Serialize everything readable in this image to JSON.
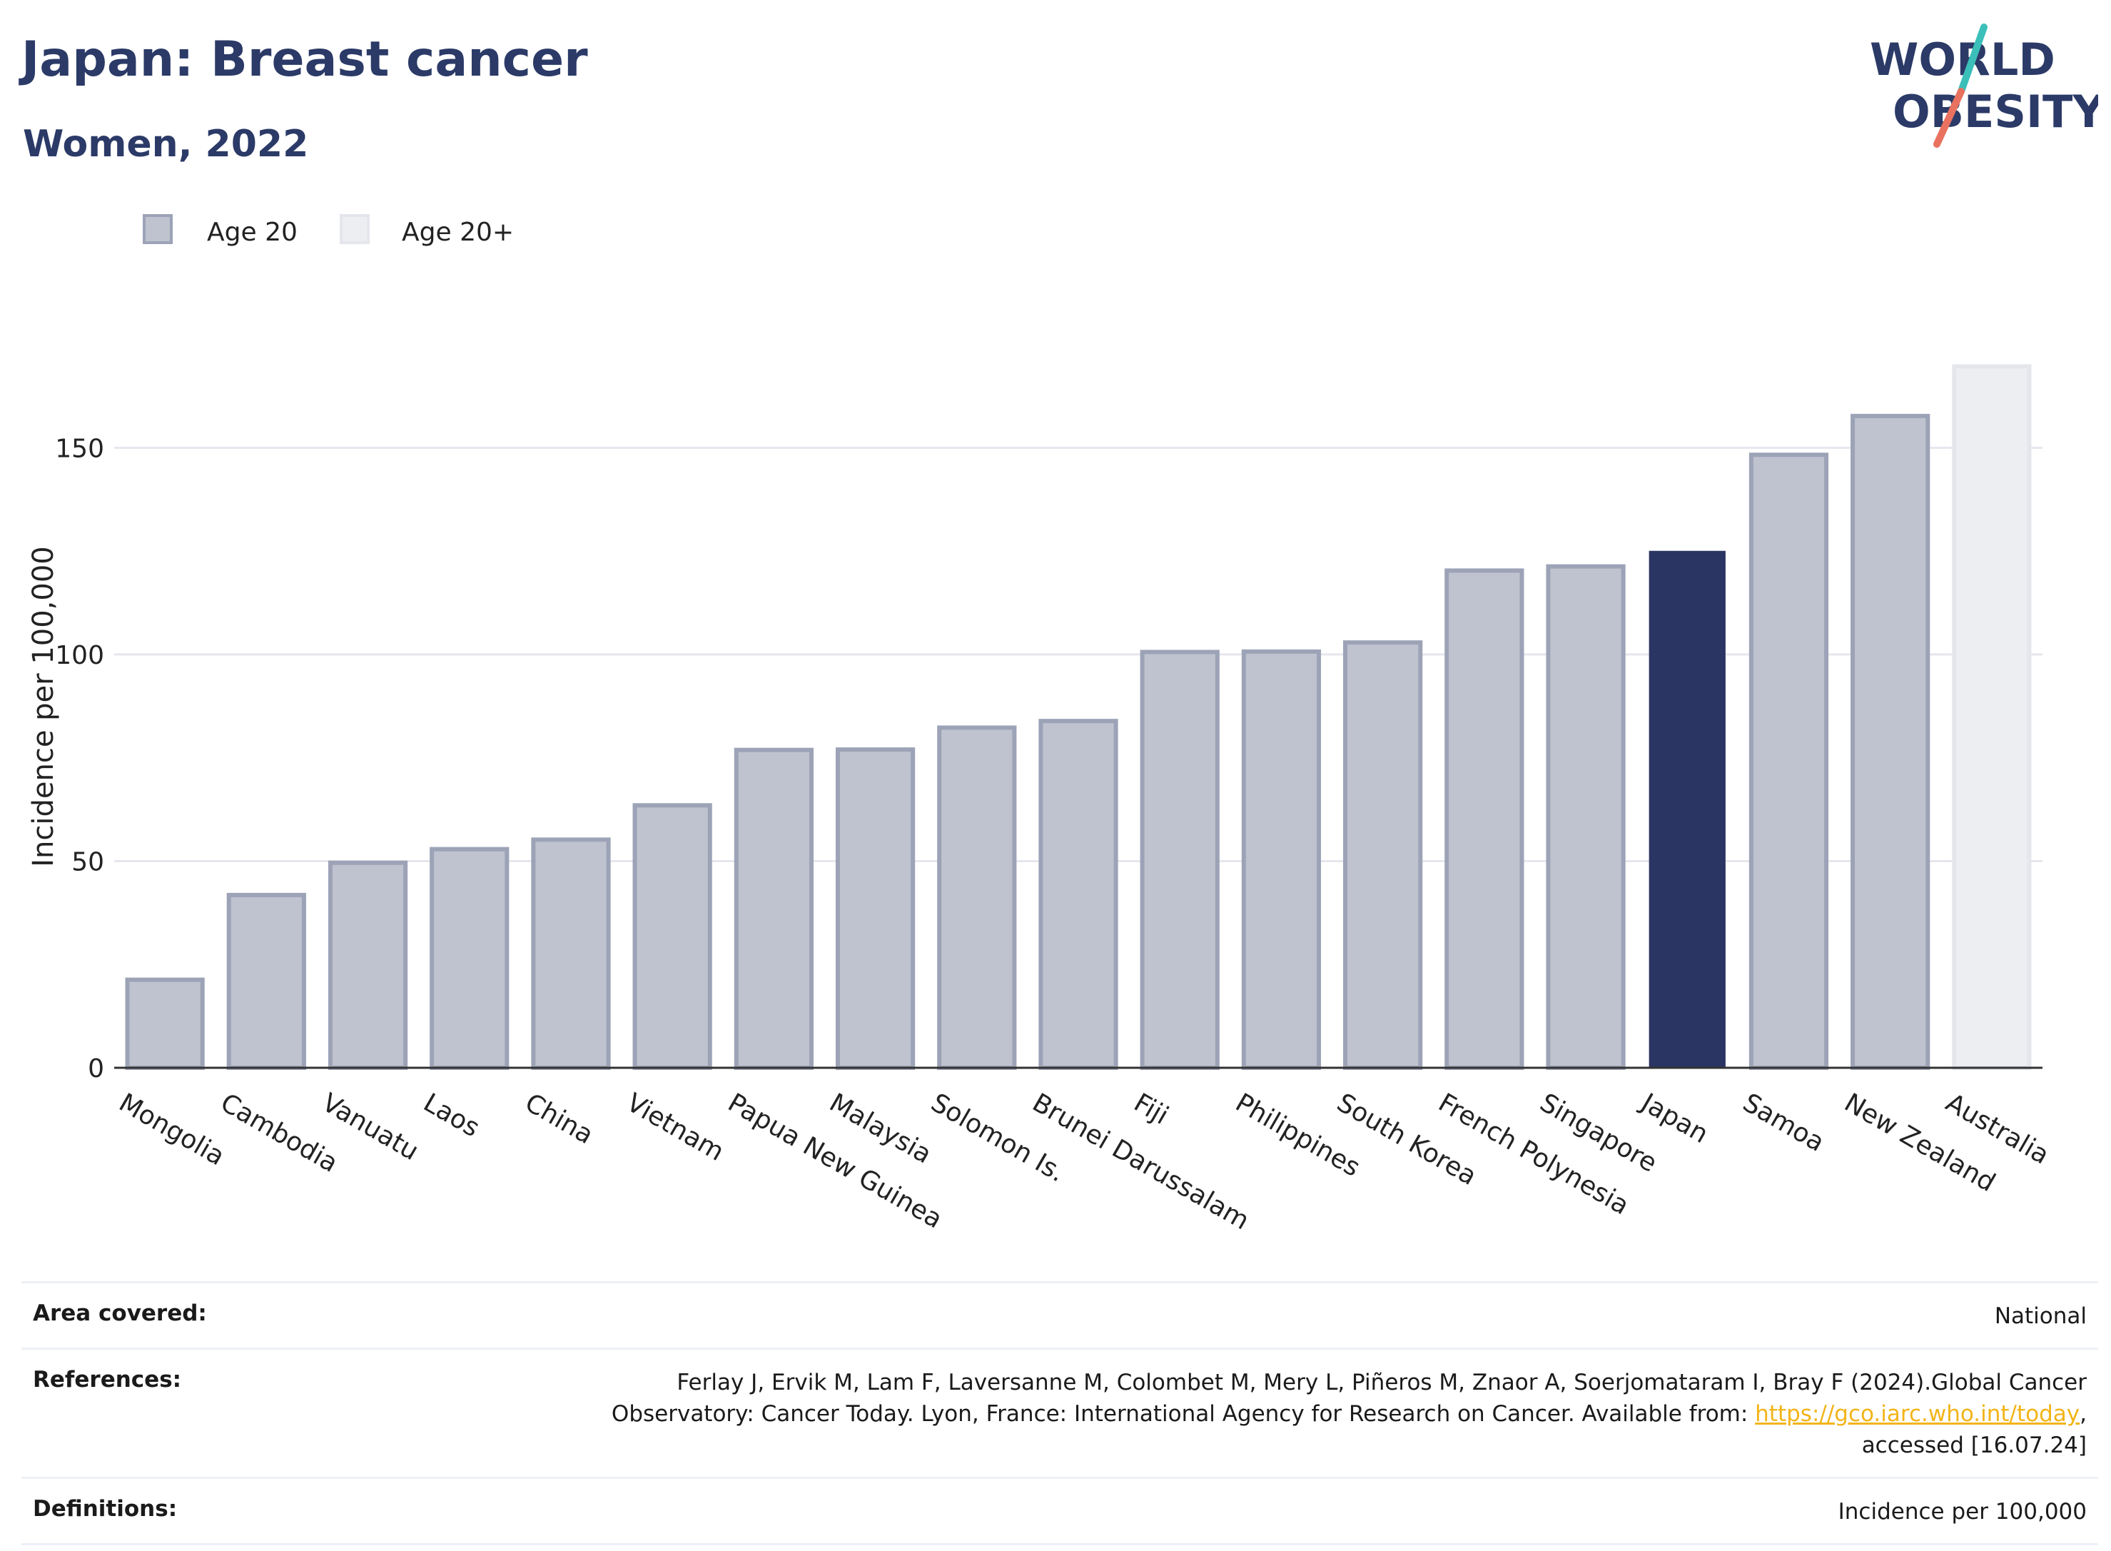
{
  "header": {
    "title": "Japan: Breast cancer",
    "subtitle": "Women, 2022"
  },
  "logo": {
    "line1": "WORLD",
    "line2": "OBESITY",
    "text_color": "#2b3a67",
    "slash_top_color": "#3bbfb9",
    "slash_bottom_color": "#e8725f"
  },
  "legend": [
    {
      "label": "Age 20",
      "fill": "#bfc3cf",
      "stroke": "#9da3b7"
    },
    {
      "label": "Age 20+",
      "fill": "#eceef2",
      "stroke": "#e4e6ec"
    }
  ],
  "chart_data": {
    "type": "bar",
    "ylabel": "Incidence per 100,000",
    "ylim": [
      0,
      172
    ],
    "yticks": [
      0,
      50,
      100,
      150
    ],
    "grid": true,
    "legend_position": "top-left",
    "categories": [
      "Mongolia",
      "Cambodia",
      "Vanuatu",
      "Laos",
      "China",
      "Vietnam",
      "Papua New Guinea",
      "Malaysia",
      "Solomon Is.",
      "Brunei Darussalam",
      "Fiji",
      "Philippines",
      "South Korea",
      "French Polynesia",
      "Singapore",
      "Japan",
      "Samoa",
      "New Zealand",
      "Australia"
    ],
    "values": [
      21.3,
      41.8,
      49.6,
      52.9,
      55.2,
      63.5,
      76.9,
      77.0,
      82.3,
      83.9,
      100.6,
      100.7,
      102.9,
      120.3,
      121.3,
      124.9,
      148.3,
      157.7,
      169.7
    ],
    "groups": [
      "Age 20",
      "Age 20",
      "Age 20",
      "Age 20",
      "Age 20",
      "Age 20",
      "Age 20",
      "Age 20",
      "Age 20",
      "Age 20",
      "Age 20",
      "Age 20",
      "Age 20",
      "Age 20",
      "Age 20",
      "Age 20",
      "Age 20",
      "Age 20",
      "Age 20+"
    ],
    "highlight": "Japan",
    "colors": {
      "age20_fill": "#bfc3cf",
      "age20_stroke": "#9da3b7",
      "age20plus_fill": "#eceef2",
      "age20plus_stroke": "#e4e6ec",
      "highlight_fill": "#2b3564",
      "grid": "#e6e7ee",
      "axis": "#333333"
    }
  },
  "info": {
    "area_label": "Area covered:",
    "area_value": "National",
    "references_label": "References:",
    "references_line1": "Ferlay J, Ervik M, Lam F, Laversanne M, Colombet M, Mery L, Piñeros M, Znaor A, Soerjomataram I, Bray F (2024).Global Cancer",
    "references_line2_pre": "Observatory: Cancer Today. Lyon, France: International Agency for Research on Cancer. Available from: ",
    "references_link": "https://gco.iarc.who.int/today",
    "references_line2_post": ",",
    "references_line3": "accessed [16.07.24]",
    "definitions_label": "Definitions:",
    "definitions_value": "Incidence per 100,000"
  }
}
